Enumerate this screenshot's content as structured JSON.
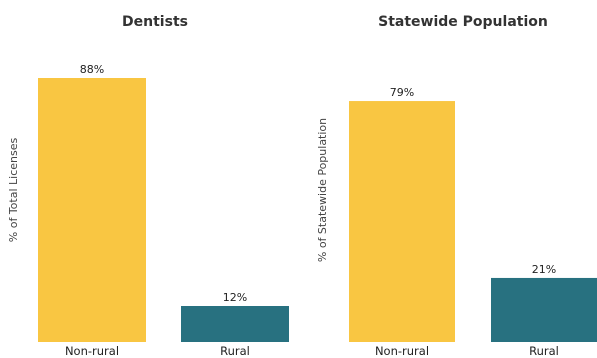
{
  "chart_data": [
    {
      "type": "bar",
      "title": "Dentists",
      "xlabel": "",
      "ylabel": "% of Total Licenses",
      "categories": [
        "Non-rural",
        "Rural"
      ],
      "values": [
        88,
        12
      ],
      "data_labels": [
        "88%",
        "12%"
      ],
      "colors": [
        "#F9C642",
        "#287180"
      ],
      "ylim": [
        0,
        100
      ],
      "grid": false,
      "legend": "none"
    },
    {
      "type": "bar",
      "title": "Statewide Population",
      "xlabel": "",
      "ylabel": "% of Statewide Population",
      "categories": [
        "Non-rural",
        "Rural"
      ],
      "values": [
        79,
        21
      ],
      "data_labels": [
        "79%",
        "21%"
      ],
      "colors": [
        "#F9C642",
        "#287180"
      ],
      "ylim": [
        0,
        100
      ],
      "grid": false,
      "legend": "none"
    }
  ]
}
